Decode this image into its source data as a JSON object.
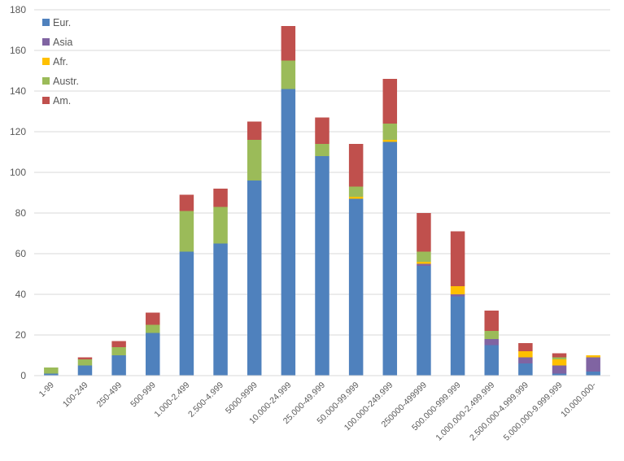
{
  "chart_data": {
    "type": "bar",
    "stacked": true,
    "categories": [
      "1-99",
      "100-249",
      "250-499",
      "500-999",
      "1.000-2.499",
      "2.500-4.999",
      "5000-9999",
      "10.000-24.999",
      "25.000-49.999",
      "50.000-99.999",
      "100.000-249.999",
      "250000-499999",
      "500.000-999.999",
      "1.000.000-2.499.999",
      "2.500.000-4.999.999",
      "5.000.000-9.999.999",
      "10.000.000-"
    ],
    "series": [
      {
        "name": "Eur.",
        "color": "#4f81bd",
        "values": [
          1,
          5,
          10,
          21,
          61,
          65,
          96,
          141,
          108,
          87,
          115,
          54,
          39,
          15,
          6,
          1,
          2
        ]
      },
      {
        "name": "Asia",
        "color": "#8064a2",
        "values": [
          0,
          0,
          0,
          0,
          0,
          0,
          0,
          0,
          0,
          0,
          0,
          1,
          1,
          3,
          3,
          4,
          7
        ]
      },
      {
        "name": "Afr.",
        "color": "#ffc000",
        "values": [
          0,
          0,
          0,
          0,
          0,
          0,
          0,
          0,
          0,
          1,
          1,
          1,
          4,
          0,
          3,
          3,
          1
        ]
      },
      {
        "name": "Austr.",
        "color": "#9bbb59",
        "values": [
          3,
          3,
          4,
          4,
          20,
          18,
          20,
          14,
          6,
          5,
          8,
          5,
          0,
          4,
          0,
          1,
          0
        ]
      },
      {
        "name": "Am.",
        "color": "#c0504d",
        "values": [
          0,
          1,
          3,
          6,
          8,
          9,
          9,
          17,
          13,
          21,
          22,
          19,
          27,
          10,
          4,
          2,
          0
        ]
      }
    ],
    "ylim": [
      0,
      180
    ],
    "yticks": [
      0,
      20,
      40,
      60,
      80,
      100,
      120,
      140,
      160,
      180
    ],
    "grid": true,
    "legend": "top-left"
  }
}
